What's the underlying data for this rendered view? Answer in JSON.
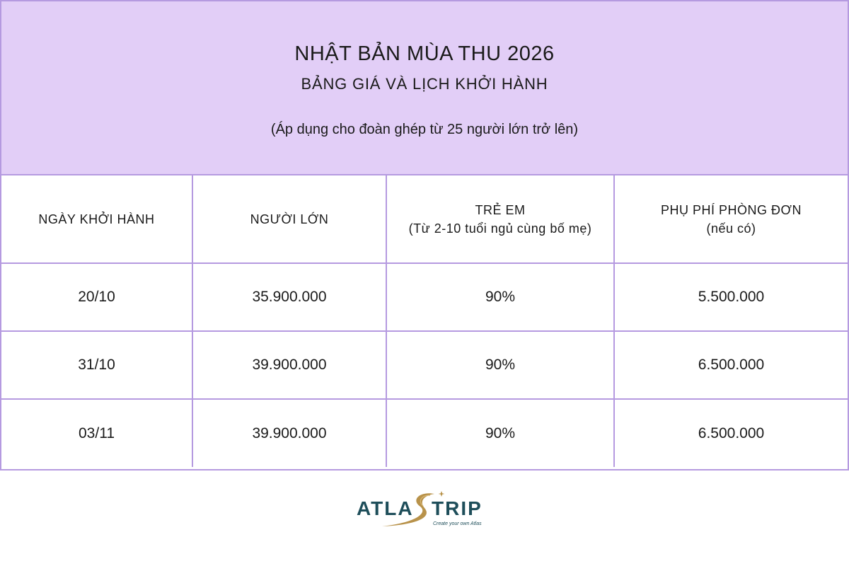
{
  "header": {
    "title": "NHẬT BẢN MÙA THU 2026",
    "subtitle": "BẢNG GIÁ VÀ LỊCH KHỞI HÀNH",
    "note": "(Áp dụng cho đoàn ghép từ 25 người lớn trở lên)"
  },
  "table": {
    "columns": [
      {
        "label": "NGÀY KHỞI HÀNH",
        "sub": ""
      },
      {
        "label": "NGƯỜI LỚN",
        "sub": ""
      },
      {
        "label": "TRẺ EM",
        "sub": "(Từ 2-10 tuổi ngủ cùng bố mẹ)"
      },
      {
        "label": "PHỤ PHÍ PHÒNG ĐƠN",
        "sub": "(nếu có)"
      }
    ],
    "rows": [
      {
        "date": "20/10",
        "adult": "35.900.000",
        "child": "90%",
        "single": "5.500.000"
      },
      {
        "date": "31/10",
        "adult": "39.900.000",
        "child": "90%",
        "single": "6.500.000"
      },
      {
        "date": "03/11",
        "adult": "39.900.000",
        "child": "90%",
        "single": "6.500.000"
      }
    ]
  },
  "logo": {
    "text_left": "ATLA",
    "text_right": "TRIP",
    "tagline": "Create your own Atlas",
    "colors": {
      "text": "#1e4e5a",
      "swoosh": "#b8924a",
      "header_bg": "#e2cef7",
      "border": "#b59ae0"
    }
  }
}
